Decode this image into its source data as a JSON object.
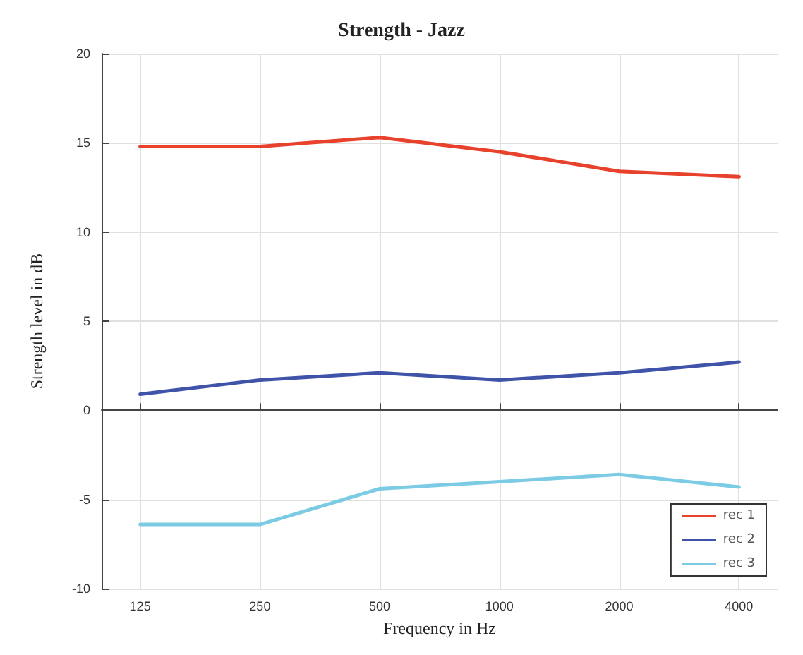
{
  "chart_data": {
    "type": "line",
    "title": "Strength - Jazz",
    "xlabel": "Frequency in Hz",
    "ylabel": "Strength level in dB",
    "x": [
      125,
      250,
      500,
      1000,
      2000,
      4000
    ],
    "series": [
      {
        "name": "rec 1",
        "color": "#e8412c",
        "values": [
          14.8,
          14.8,
          15.3,
          14.5,
          13.4,
          13.1
        ]
      },
      {
        "name": "rec 2",
        "color": "#3f54a8",
        "values": [
          0.9,
          1.7,
          2.1,
          1.7,
          2.1,
          2.7
        ]
      },
      {
        "name": "rec 3",
        "color": "#7ccbe4",
        "values": [
          -6.4,
          -6.4,
          -4.4,
          -4.0,
          -3.6,
          -4.3
        ]
      }
    ],
    "log": "x",
    "xlim": [
      100,
      5000
    ],
    "xticks": [
      125,
      250,
      500,
      1000,
      2000,
      4000
    ],
    "ylim": [
      -10,
      20
    ],
    "yticks": [
      -10,
      -5,
      0,
      5,
      10,
      15,
      20
    ],
    "grid": true,
    "legend": "bottom right",
    "line_style": "solid",
    "marker": "none"
  }
}
